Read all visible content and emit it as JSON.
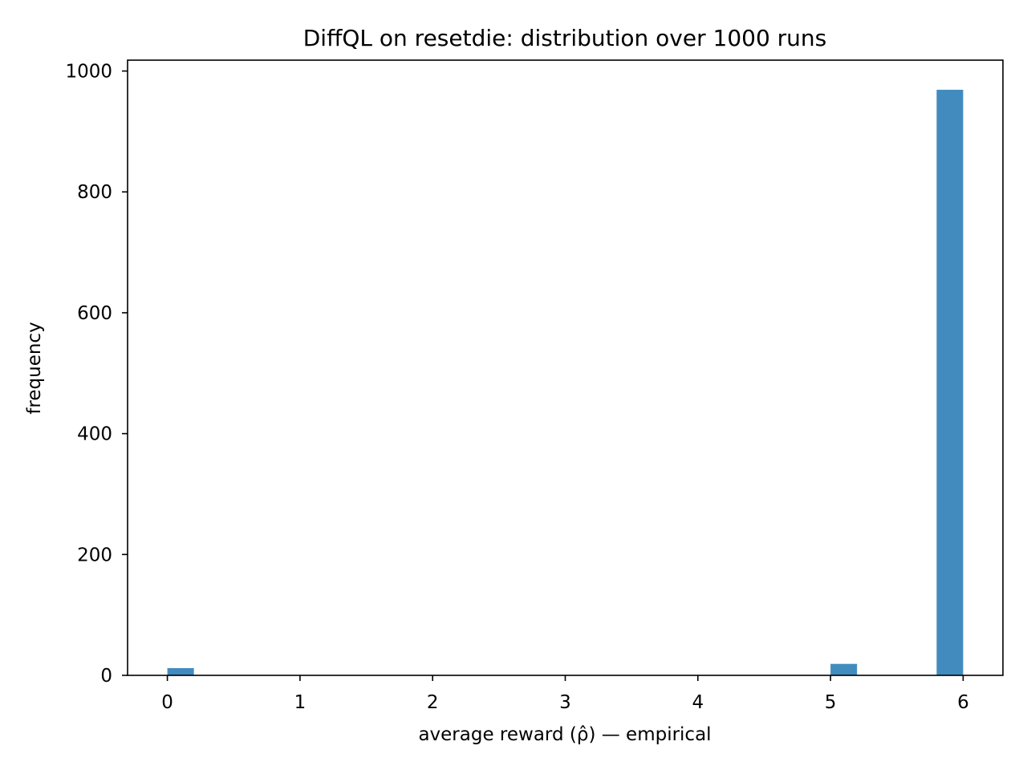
{
  "chart_data": {
    "type": "bar",
    "title": "DiffQL on resetdie: distribution over 1000 runs",
    "xlabel": "average reward (ρ̂) — empirical",
    "ylabel": "frequency",
    "xlim": [
      -0.3,
      6.3
    ],
    "ylim": [
      0,
      1018
    ],
    "xticks": [
      0,
      1,
      2,
      3,
      4,
      5,
      6
    ],
    "yticks": [
      0,
      200,
      400,
      600,
      800,
      1000
    ],
    "bin_width": 0.2,
    "bins": [
      {
        "x_start": 0.0,
        "x_end": 0.2,
        "value": 12
      },
      {
        "x_start": 5.0,
        "x_end": 5.2,
        "value": 19
      },
      {
        "x_start": 5.8,
        "x_end": 6.0,
        "value": 969
      }
    ],
    "bar_color": "#428bbf",
    "grid": false,
    "legend": null
  }
}
